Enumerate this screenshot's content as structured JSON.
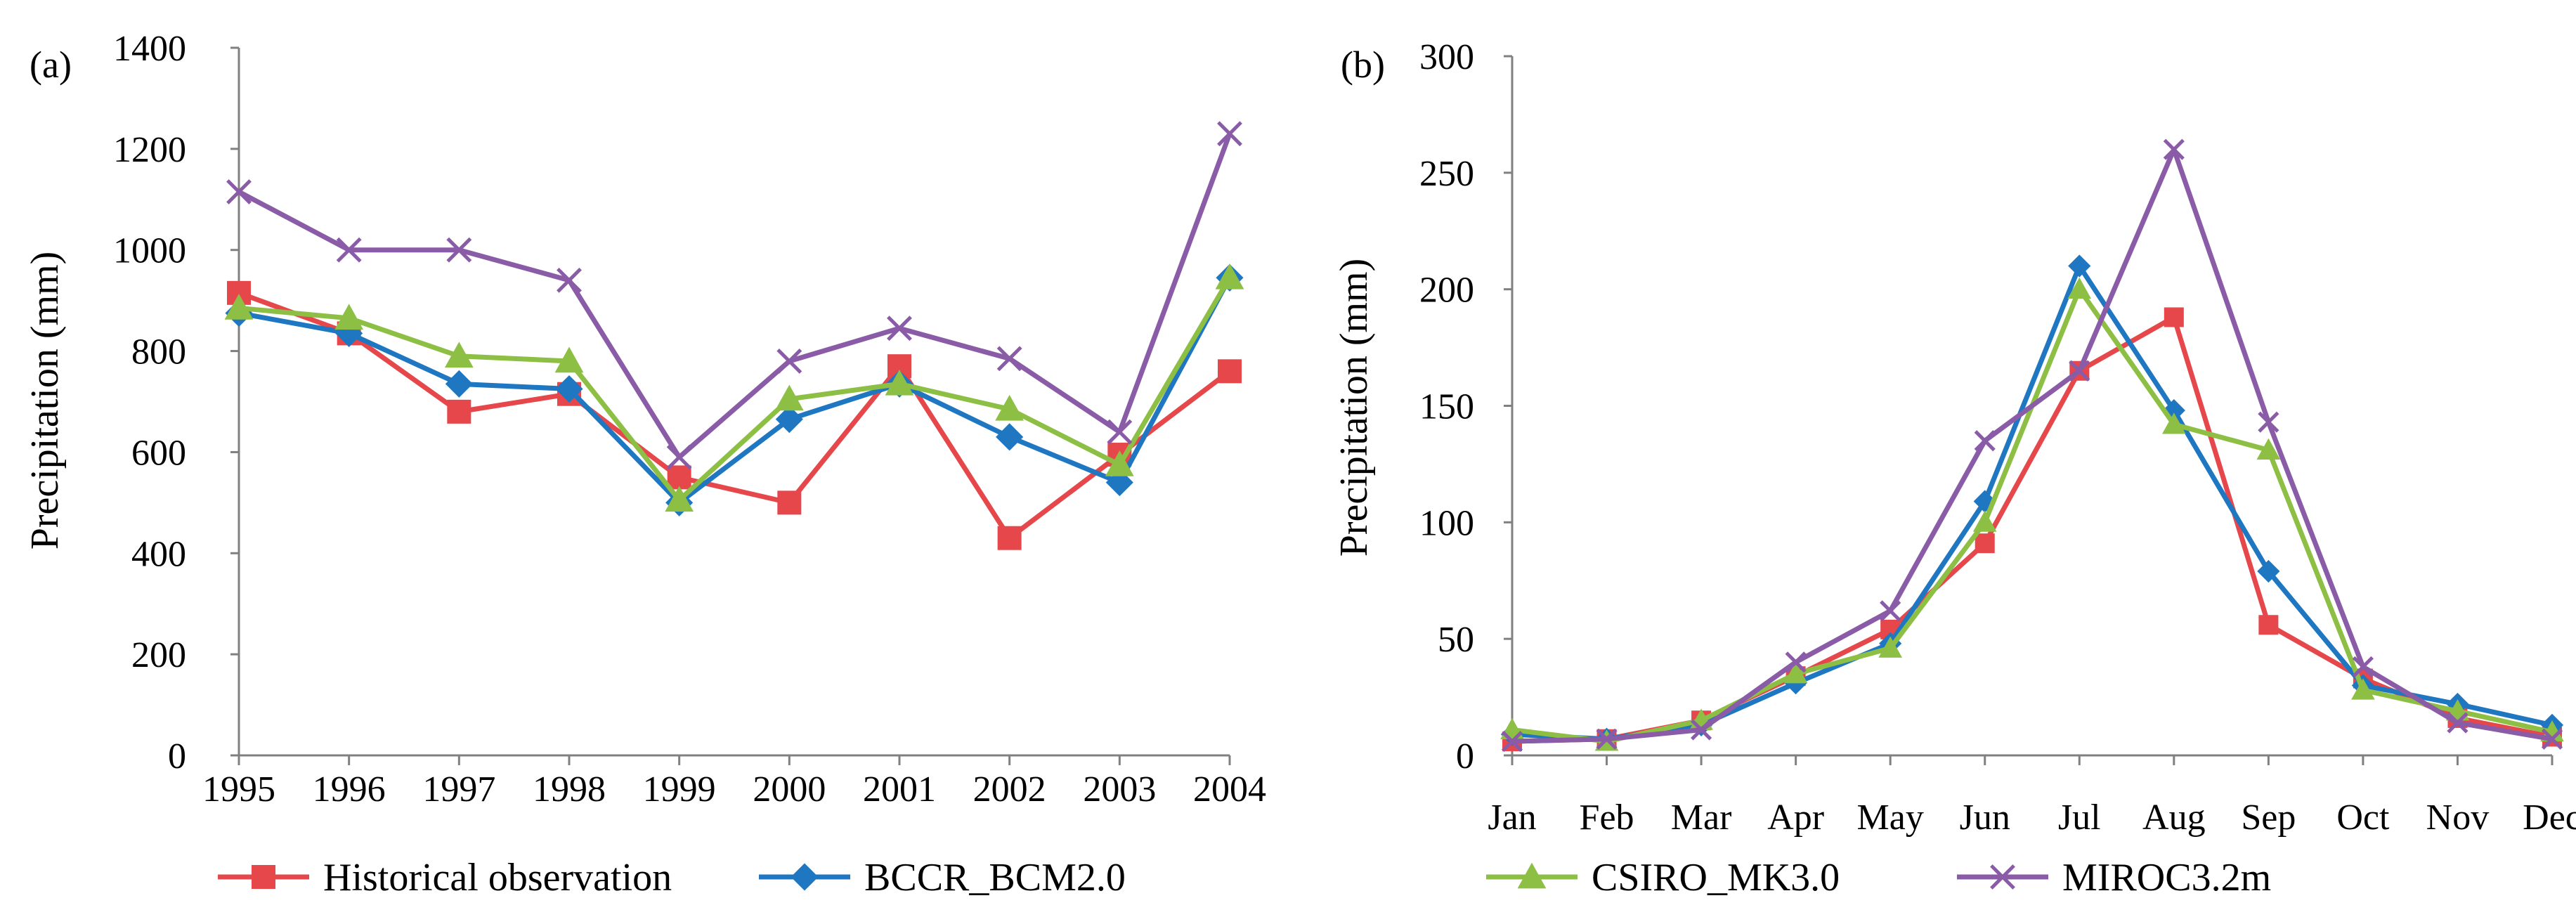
{
  "colors": {
    "historical": "#E5474B",
    "bccr": "#1F77C2",
    "csiro": "#8DBF44",
    "miroc": "#8A5BA6",
    "axis": "#808080"
  },
  "legend": [
    {
      "label": "Historical observation",
      "series": 0,
      "marker": "square"
    },
    {
      "label": "BCCR_BCM2.0",
      "series": 1,
      "marker": "diamond"
    },
    {
      "label": "CSIRO_MK3.0",
      "series": 2,
      "marker": "triangle"
    },
    {
      "label": "MIROC3.2m",
      "series": 3,
      "marker": "x"
    }
  ],
  "chart_data": [
    {
      "type": "line",
      "panel_label": "(a)",
      "ylabel": "Precipitation (mm)",
      "xlabel": "",
      "ylim": [
        0,
        1400
      ],
      "yticks": [
        0,
        200,
        400,
        600,
        800,
        1000,
        1200,
        1400
      ],
      "categories": [
        "1995",
        "1996",
        "1997",
        "1998",
        "1999",
        "2000",
        "2001",
        "2002",
        "2003",
        "2004"
      ],
      "series": [
        {
          "name": "Historical observation",
          "marker": "square",
          "values": [
            915,
            835,
            680,
            715,
            550,
            500,
            770,
            430,
            595,
            760
          ]
        },
        {
          "name": "BCCR_BCM2.0",
          "marker": "diamond",
          "values": [
            875,
            835,
            735,
            725,
            500,
            665,
            735,
            630,
            540,
            945
          ]
        },
        {
          "name": "CSIRO_MK3.0",
          "marker": "triangle",
          "values": [
            885,
            865,
            790,
            780,
            505,
            705,
            735,
            685,
            575,
            945
          ]
        },
        {
          "name": "MIROC3.2m",
          "marker": "x",
          "values": [
            1115,
            1000,
            1000,
            940,
            590,
            780,
            845,
            785,
            640,
            1230
          ]
        }
      ]
    },
    {
      "type": "line",
      "panel_label": "(b)",
      "ylabel": "Precipitation (mm)",
      "xlabel": "",
      "ylim": [
        0,
        300
      ],
      "yticks": [
        0,
        50,
        100,
        150,
        200,
        250,
        300
      ],
      "categories": [
        "Jan",
        "Feb",
        "Mar",
        "Apr",
        "May",
        "Jun",
        "Jul",
        "Aug",
        "Sep",
        "Oct",
        "Nov",
        "Dec"
      ],
      "series": [
        {
          "name": "Historical observation",
          "marker": "square",
          "values": [
            6,
            7,
            15,
            34,
            54,
            91,
            165,
            188,
            56,
            33,
            16,
            8
          ]
        },
        {
          "name": "BCCR_BCM2.0",
          "marker": "diamond",
          "values": [
            9,
            7,
            13,
            31,
            48,
            109,
            210,
            148,
            79,
            30,
            22,
            13
          ]
        },
        {
          "name": "CSIRO_MK3.0",
          "marker": "triangle",
          "values": [
            11,
            6,
            15,
            35,
            46,
            100,
            200,
            142,
            131,
            28,
            19,
            10
          ]
        },
        {
          "name": "MIROC3.2m",
          "marker": "x",
          "values": [
            6,
            7,
            11,
            40,
            62,
            135,
            165,
            260,
            143,
            38,
            14,
            7
          ]
        }
      ]
    }
  ]
}
